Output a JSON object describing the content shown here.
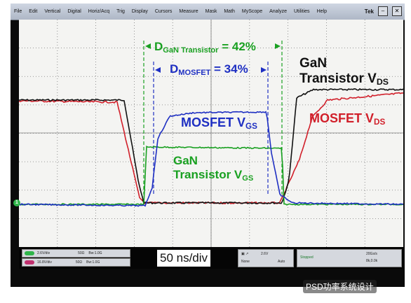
{
  "menubar": {
    "items": [
      "File",
      "Edit",
      "Vertical",
      "Digital",
      "Horiz/Acq",
      "Trig",
      "Display",
      "Cursors",
      "Measure",
      "Mask",
      "Math",
      "MyScope",
      "Analyze",
      "Utilities",
      "Help"
    ],
    "brand": "Tek"
  },
  "annotations": {
    "d_gan_main": "D",
    "d_gan_sub": "GaN Transistor",
    "d_gan_value": " = 42%",
    "d_mos_main": "D",
    "d_mos_sub": "MOSFET",
    "d_mos_value": " = 34%",
    "gan_vds_line1": "GaN",
    "gan_vds_line2": "Transistor V",
    "gan_vds_sub": "DS",
    "mos_vds_main": "MOSFET V",
    "mos_vds_sub": "DS",
    "mos_vgs_main": "MOSFET V",
    "mos_vgs_sub": "GS",
    "gan_vgs_line1": "GaN",
    "gan_vgs_line2": "Transistor V",
    "gan_vgs_sub": "GS"
  },
  "bottom_panel": {
    "timebase": "50 ns/div",
    "ch1_scale": "2.6V/div",
    "ch1_imp": "50Ω",
    "ch1_bw": "Bw:1.0G",
    "ch2_scale": "16.8V/div",
    "ch2_imp": "50Ω",
    "ch2_bw": "Bw:1.0G",
    "trig_level": "2.6V",
    "trig_mode": "None",
    "trig_auto": "Auto",
    "acq_state": "Stopped",
    "acq_rate": "20Gs/s",
    "acq_points": "8k,0.0k"
  },
  "watermark": "PSD功率系统设计",
  "colors": {
    "gan_vgs": "#19a021",
    "mosfet_vgs": "#1e2fc2",
    "gan_vds": "#111111",
    "mosfet_vds": "#d11f2a",
    "screen_bg": "#f4f4f2",
    "grid": "#7a7a7a",
    "duty_gan_line": "#19a021",
    "duty_mos_line": "#1e2fc2"
  }
}
